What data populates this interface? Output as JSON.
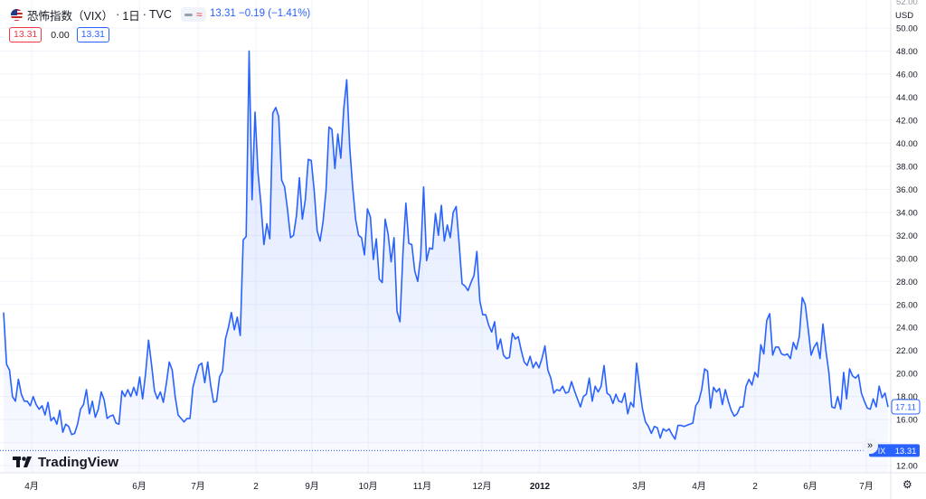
{
  "header": {
    "title": "恐怖指数（VIX）",
    "interval": "1日",
    "source": "TVC",
    "change": "13.31 −0.19 (−1.41%)"
  },
  "values_row": {
    "sell": "13.31",
    "spread": "0.00",
    "buy": "13.31"
  },
  "price_axis": {
    "unit": "USD",
    "top_clip": "52.00",
    "ticks": [
      "50.00",
      "48.00",
      "46.00",
      "44.00",
      "42.00",
      "40.00",
      "38.00",
      "36.00",
      "34.00",
      "32.00",
      "30.00",
      "28.00",
      "26.00",
      "24.00",
      "22.00",
      "20.00",
      "18.00",
      "16.00",
      "14.00",
      "12.00"
    ]
  },
  "markers": {
    "current_value": "17.11",
    "last_symbol": "IX",
    "last_value": "13.31"
  },
  "logo": {
    "text": "TradingView"
  },
  "controls": {
    "scroll_glyph": "»",
    "settings_glyph": "⚙"
  },
  "colors": {
    "line": "#2962ff",
    "up": "#2962ff",
    "down": "#f23645",
    "grid": "#f0f3fa"
  },
  "chart_data": {
    "type": "area",
    "title": "恐怖指数（VIX）",
    "xlabel": "",
    "ylabel": "",
    "ylim": [
      11,
      52
    ],
    "grid": true,
    "x_ticks": [
      "4月",
      "6月",
      "7月",
      "2",
      "9月",
      "10月",
      "11月",
      "12月",
      "2012",
      "3月",
      "4月",
      "2",
      "6月",
      "7月"
    ],
    "series": [
      {
        "values": [
          25.3,
          20.8,
          20.3,
          18.0,
          17.6,
          19.5,
          18.2,
          17.6,
          17.6,
          17.2,
          18.0,
          17.3,
          16.9,
          17.2,
          16.4,
          17.5,
          15.9,
          16.2,
          15.6,
          16.8,
          14.9,
          15.6,
          15.4,
          14.7,
          14.8,
          15.6,
          16.9,
          17.3,
          18.6,
          16.5,
          17.6,
          16.2,
          16.9,
          18.4,
          17.7,
          16.1,
          16.3,
          16.4,
          15.7,
          15.6,
          18.5,
          18.0,
          18.6,
          18.0,
          18.8,
          18.1,
          19.7,
          17.8,
          20.0,
          22.9,
          20.8,
          18.5,
          17.8,
          18.4,
          17.5,
          19.1,
          21.0,
          20.3,
          18.0,
          16.4,
          16.1,
          15.8,
          16.1,
          16.1,
          18.8,
          19.8,
          20.7,
          20.9,
          19.2,
          21.0,
          19.0,
          17.5,
          17.6,
          19.7,
          20.2,
          23.0,
          24.0,
          25.3,
          23.8,
          24.9,
          23.3,
          31.6,
          31.9,
          48.0,
          35.1,
          42.7,
          37.5,
          34.7,
          31.2,
          33.0,
          31.7,
          42.6,
          43.1,
          42.3,
          36.8,
          36.2,
          34.2,
          31.8,
          32.0,
          33.7,
          37.0,
          33.4,
          35.1,
          38.6,
          38.5,
          35.9,
          32.4,
          31.5,
          33.2,
          35.9,
          41.4,
          41.2,
          37.8,
          40.8,
          38.7,
          43.0,
          45.5,
          39.7,
          36.2,
          33.4,
          32.0,
          31.8,
          30.3,
          34.3,
          33.6,
          29.9,
          31.7,
          28.2,
          27.9,
          33.4,
          32.1,
          29.7,
          31.8,
          25.4,
          24.5,
          30.4,
          34.8,
          31.3,
          31.2,
          28.9,
          28.0,
          30.2,
          36.2,
          29.8,
          30.9,
          30.8,
          33.9,
          32.0,
          34.6,
          31.5,
          32.9,
          31.8,
          34.0,
          34.5,
          31.3,
          27.8,
          27.6,
          27.2,
          27.9,
          28.5,
          30.6,
          26.3,
          25.1,
          25.1,
          24.2,
          23.6,
          24.5,
          22.1,
          23.0,
          21.6,
          21.3,
          21.4,
          23.5,
          23.0,
          23.2,
          22.0,
          21.0,
          20.7,
          21.5,
          20.5,
          21.0,
          20.5,
          21.3,
          22.4,
          20.3,
          19.6,
          18.3,
          18.6,
          18.5,
          18.9,
          18.3,
          18.4,
          19.3,
          18.5,
          17.8,
          17.1,
          18.0,
          18.2,
          19.6,
          17.6,
          18.9,
          18.4,
          18.9,
          20.7,
          18.3,
          18.1,
          17.4,
          18.2,
          17.6,
          17.5,
          18.3,
          16.5,
          17.5,
          17.1,
          20.9,
          18.8,
          16.9,
          15.8,
          15.4,
          14.8,
          15.4,
          15.3,
          14.4,
          15.2,
          15.0,
          15.2,
          14.7,
          14.3,
          15.5,
          15.5,
          15.4,
          15.5,
          15.6,
          15.7,
          17.2,
          17.6,
          18.6,
          20.4,
          20.2,
          17.0,
          18.8,
          18.4,
          18.7,
          17.3,
          18.6,
          17.6,
          16.8,
          16.3,
          16.5,
          17.1,
          17.1,
          18.9,
          19.5,
          19.0,
          20.1,
          19.7,
          22.5,
          21.7,
          24.6,
          25.2,
          21.6,
          22.3,
          22.3,
          21.7,
          21.6,
          21.7,
          21.3,
          22.7,
          22.1,
          23.2,
          26.6,
          26.0,
          23.9,
          21.6,
          22.3,
          22.7,
          21.3,
          24.3,
          22.0,
          20.1,
          17.1,
          17.0,
          18.0,
          16.9,
          20.1,
          17.8,
          20.4,
          19.8,
          19.6,
          19.9,
          18.3,
          17.6,
          17.0,
          16.9,
          17.8,
          17.1,
          18.9,
          17.9,
          18.3,
          17.1
        ]
      }
    ]
  }
}
